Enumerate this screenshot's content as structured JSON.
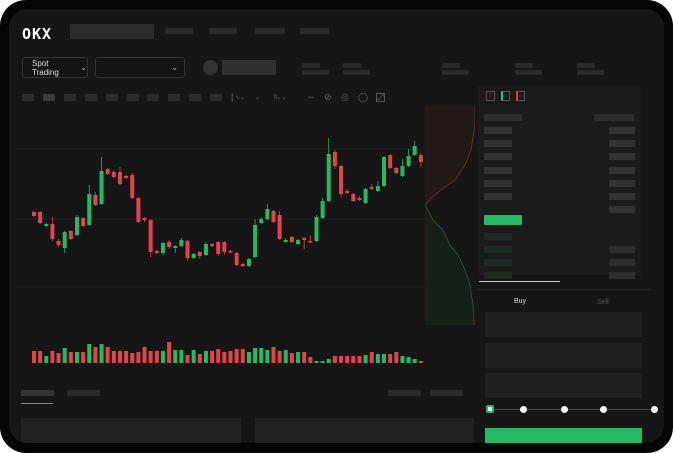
{
  "header": {
    "logo": "OKX"
  },
  "market": {
    "mode_label": "Spot Trading"
  },
  "trade": {
    "tabs": [
      {
        "label": "Buy",
        "active": true
      },
      {
        "label": "Sell",
        "active": false
      }
    ],
    "leverage_steps": 5,
    "selected_step": 0
  },
  "colors": {
    "up": "#25b865",
    "down": "#e0444c",
    "accent": "#25b865"
  },
  "icons": [
    "chevron-down-icon",
    "indicator-icon",
    "draw-line-icon",
    "ruler-icon",
    "camera-icon",
    "settings-icon",
    "fullscreen-icon",
    "orderbook-both-icon",
    "orderbook-bids-icon",
    "orderbook-asks-icon"
  ],
  "chart_data": {
    "type": "candlestick",
    "ohlc": [
      [
        97,
        98,
        92,
        93
      ],
      [
        97,
        98,
        85,
        86
      ],
      [
        83,
        86,
        82,
        85
      ],
      [
        85,
        92,
        68,
        70
      ],
      [
        68,
        70,
        62,
        64
      ],
      [
        61,
        78,
        56,
        77
      ],
      [
        78,
        79,
        69,
        70
      ],
      [
        74,
        94,
        73,
        92
      ],
      [
        91,
        92,
        82,
        83
      ],
      [
        84,
        124,
        83,
        115
      ],
      [
        114,
        117,
        103,
        104
      ],
      [
        105,
        152,
        104,
        138
      ],
      [
        140,
        141,
        134,
        135
      ],
      [
        137,
        139,
        131,
        132
      ],
      [
        137,
        142,
        124,
        125
      ],
      [
        133,
        134,
        130,
        131
      ],
      [
        134,
        136,
        110,
        111
      ],
      [
        111,
        112,
        86,
        87
      ],
      [
        91,
        92,
        87,
        89
      ],
      [
        89,
        90,
        52,
        57
      ],
      [
        58,
        59,
        55,
        56
      ],
      [
        56,
        67,
        54,
        66
      ],
      [
        67,
        69,
        60,
        62
      ],
      [
        61,
        64,
        56,
        63
      ],
      [
        63,
        71,
        62,
        69
      ],
      [
        68,
        69,
        48,
        51
      ],
      [
        51,
        56,
        50,
        55
      ],
      [
        57,
        58,
        50,
        53
      ],
      [
        54,
        67,
        53,
        65
      ],
      [
        65,
        66,
        62,
        63
      ],
      [
        67,
        68,
        53,
        55
      ],
      [
        67,
        68,
        54,
        57
      ],
      [
        58,
        59,
        56,
        57
      ],
      [
        56,
        57,
        43,
        44
      ],
      [
        45,
        46,
        42,
        43
      ],
      [
        43,
        51,
        42,
        50
      ],
      [
        52,
        90,
        51,
        84
      ],
      [
        86,
        92,
        85,
        90
      ],
      [
        90,
        105,
        89,
        100
      ],
      [
        98,
        99,
        86,
        87
      ],
      [
        94,
        98,
        69,
        70
      ],
      [
        67,
        71,
        66,
        69
      ],
      [
        72,
        73,
        66,
        67
      ],
      [
        65,
        70,
        64,
        69
      ],
      [
        71,
        72,
        60,
        69
      ],
      [
        68,
        74,
        66,
        67
      ],
      [
        68,
        94,
        67,
        92
      ],
      [
        91,
        111,
        90,
        108
      ],
      [
        108,
        171,
        107,
        155
      ],
      [
        157,
        159,
        140,
        143
      ],
      [
        143,
        144,
        112,
        115
      ],
      [
        118,
        120,
        115,
        116
      ],
      [
        115,
        116,
        107,
        108
      ],
      [
        111,
        113,
        108,
        109
      ],
      [
        106,
        121,
        105,
        120
      ],
      [
        122,
        125,
        119,
        120
      ],
      [
        118,
        128,
        117,
        123
      ],
      [
        123,
        153,
        122,
        152
      ],
      [
        154,
        155,
        140,
        141
      ],
      [
        141,
        142,
        135,
        136
      ],
      [
        133,
        150,
        132,
        143
      ],
      [
        143,
        160,
        142,
        153
      ],
      [
        154,
        168,
        153,
        163
      ],
      [
        154,
        156,
        142,
        147
      ],
      [
        145,
        158,
        144,
        151
      ]
    ],
    "volume": [
      12,
      12,
      7,
      12,
      10,
      15,
      11,
      11,
      11,
      19,
      16,
      19,
      16,
      12,
      12,
      12,
      10,
      11,
      16,
      12,
      12,
      12,
      21,
      13,
      13,
      8,
      13,
      9,
      12,
      12,
      14,
      11,
      12,
      14,
      14,
      11,
      15,
      15,
      13,
      16,
      12,
      13,
      10,
      11,
      11,
      6,
      2,
      2,
      4,
      7,
      7,
      7,
      7,
      7,
      8,
      11,
      9,
      9,
      9,
      11,
      7,
      6,
      4,
      2,
      4
    ]
  }
}
